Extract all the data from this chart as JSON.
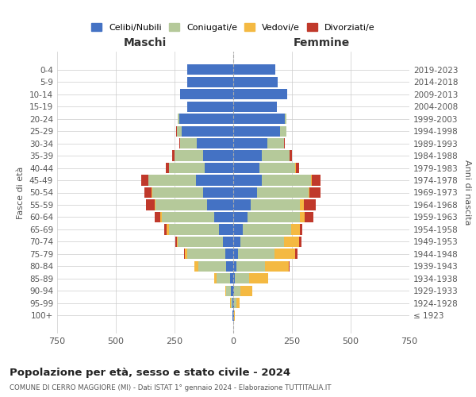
{
  "age_groups": [
    "0-4",
    "5-9",
    "10-14",
    "15-19",
    "20-24",
    "25-29",
    "30-34",
    "35-39",
    "40-44",
    "45-49",
    "50-54",
    "55-59",
    "60-64",
    "65-69",
    "70-74",
    "75-79",
    "80-84",
    "85-89",
    "90-94",
    "95-99",
    "100+"
  ],
  "birth_years": [
    "2019-2023",
    "2014-2018",
    "2009-2013",
    "2004-2008",
    "1999-2003",
    "1994-1998",
    "1989-1993",
    "1984-1988",
    "1979-1983",
    "1974-1978",
    "1969-1973",
    "1964-1968",
    "1959-1963",
    "1954-1958",
    "1949-1953",
    "1944-1948",
    "1939-1943",
    "1934-1938",
    "1929-1933",
    "1924-1928",
    "≤ 1923"
  ],
  "maschi": {
    "celibi": [
      195,
      195,
      225,
      195,
      230,
      220,
      155,
      130,
      120,
      160,
      130,
      110,
      80,
      60,
      45,
      35,
      30,
      15,
      10,
      5,
      2
    ],
    "coniugati": [
      0,
      0,
      0,
      2,
      5,
      20,
      70,
      120,
      155,
      200,
      215,
      220,
      225,
      215,
      190,
      160,
      120,
      55,
      20,
      5,
      2
    ],
    "vedovi": [
      0,
      0,
      0,
      0,
      0,
      0,
      0,
      0,
      0,
      2,
      3,
      3,
      5,
      8,
      5,
      10,
      15,
      10,
      5,
      2,
      0
    ],
    "divorziati": [
      0,
      0,
      0,
      0,
      0,
      2,
      5,
      10,
      12,
      30,
      30,
      40,
      25,
      10,
      8,
      5,
      0,
      0,
      0,
      0,
      0
    ]
  },
  "femmine": {
    "nubili": [
      180,
      190,
      230,
      185,
      220,
      200,
      145,
      120,
      110,
      120,
      100,
      75,
      60,
      40,
      30,
      20,
      15,
      8,
      5,
      5,
      2
    ],
    "coniugate": [
      0,
      0,
      0,
      2,
      5,
      25,
      70,
      120,
      155,
      210,
      220,
      210,
      225,
      205,
      185,
      155,
      120,
      60,
      25,
      8,
      2
    ],
    "vedove": [
      0,
      0,
      0,
      0,
      0,
      0,
      0,
      0,
      2,
      5,
      5,
      15,
      20,
      40,
      65,
      90,
      100,
      80,
      50,
      15,
      2
    ],
    "divorziate": [
      0,
      0,
      0,
      0,
      0,
      2,
      5,
      10,
      12,
      35,
      45,
      50,
      35,
      10,
      12,
      8,
      5,
      2,
      0,
      0,
      0
    ]
  },
  "colors": {
    "celibi_nubili": "#4472c4",
    "coniugati": "#b5c99a",
    "vedovi": "#f4b942",
    "divorziati": "#c0392b"
  },
  "xlim": 750,
  "title": "Popolazione per età, sesso e stato civile - 2024",
  "subtitle": "COMUNE DI CERRO MAGGIORE (MI) - Dati ISTAT 1° gennaio 2024 - Elaborazione TUTTITALIA.IT",
  "ylabel_left": "Fasce di età",
  "ylabel_right": "Anni di nascita",
  "xlabel_maschi": "Maschi",
  "xlabel_femmine": "Femmine"
}
